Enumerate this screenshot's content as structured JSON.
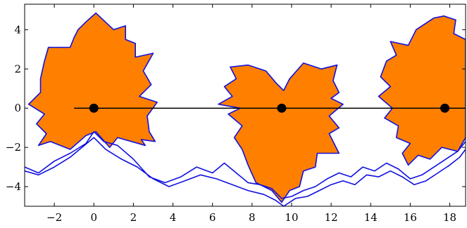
{
  "chart_data": {
    "type": "scatter",
    "title": "",
    "xlabel": "",
    "ylabel": "",
    "xlim": [
      -3.5,
      18.8
    ],
    "ylim": [
      -5.0,
      5.3
    ],
    "x_ticks": [
      -2,
      0,
      2,
      4,
      6,
      8,
      10,
      12,
      14,
      16,
      18
    ],
    "y_ticks": [
      -4,
      -2,
      0,
      2,
      4
    ],
    "x_tick_labels": [
      "−2",
      "0",
      "2",
      "4",
      "6",
      "8",
      "10",
      "12",
      "14",
      "16",
      "18"
    ],
    "y_tick_labels": [
      "−4",
      "−2",
      "0",
      "2",
      "4"
    ],
    "grid": false,
    "legend": "none",
    "horizontal_line": {
      "y": 0,
      "x_start": -1.0,
      "x_end": 18.8
    },
    "points": [
      {
        "x": 0.0,
        "y": 0.0
      },
      {
        "x": 9.5,
        "y": 0.0
      },
      {
        "x": 17.75,
        "y": 0.0
      }
    ],
    "fractal_shapes": [
      {
        "center": [
          0.0,
          0.0
        ],
        "outline": [
          [
            0.1,
            4.85
          ],
          [
            1.0,
            4.0
          ],
          [
            1.6,
            4.2
          ],
          [
            1.6,
            3.5
          ],
          [
            2.1,
            3.3
          ],
          [
            2.1,
            2.6
          ],
          [
            3.0,
            2.8
          ],
          [
            2.5,
            1.9
          ],
          [
            2.9,
            1.2
          ],
          [
            2.3,
            0.6
          ],
          [
            3.2,
            0.3
          ],
          [
            2.7,
            -0.4
          ],
          [
            2.8,
            -1.2
          ],
          [
            3.1,
            -1.7
          ],
          [
            2.4,
            -1.6
          ],
          [
            2.6,
            -1.9
          ],
          [
            1.2,
            -1.5
          ],
          [
            0.8,
            -2.0
          ],
          [
            0.1,
            -1.2
          ],
          [
            -0.4,
            -1.4
          ],
          [
            -1.2,
            -2.1
          ],
          [
            -2.2,
            -1.7
          ],
          [
            -2.8,
            -1.9
          ],
          [
            -2.4,
            -1.3
          ],
          [
            -2.9,
            -0.8
          ],
          [
            -2.5,
            -0.3
          ],
          [
            -3.3,
            0.2
          ],
          [
            -2.7,
            0.8
          ],
          [
            -2.7,
            1.5
          ],
          [
            -2.5,
            2.4
          ],
          [
            -2.3,
            3.1
          ],
          [
            -1.2,
            3.1
          ],
          [
            -1.0,
            3.6
          ],
          [
            -0.8,
            4.0
          ],
          [
            -0.4,
            4.4
          ]
        ]
      },
      {
        "center": [
          9.5,
          0.0
        ],
        "outline": [
          [
            6.9,
            2.1
          ],
          [
            7.8,
            2.2
          ],
          [
            8.7,
            1.9
          ],
          [
            9.2,
            1.3
          ],
          [
            9.6,
            0.9
          ],
          [
            9.9,
            1.5
          ],
          [
            10.6,
            2.3
          ],
          [
            11.5,
            2.0
          ],
          [
            12.3,
            2.2
          ],
          [
            12.1,
            1.4
          ],
          [
            12.4,
            0.8
          ],
          [
            12.0,
            0.5
          ],
          [
            12.6,
            0.2
          ],
          [
            11.9,
            -0.4
          ],
          [
            12.4,
            -1.0
          ],
          [
            11.9,
            -1.3
          ],
          [
            12.4,
            -2.3
          ],
          [
            11.3,
            -2.3
          ],
          [
            11.2,
            -3.0
          ],
          [
            10.6,
            -3.2
          ],
          [
            10.4,
            -4.0
          ],
          [
            9.9,
            -4.2
          ],
          [
            9.5,
            -4.8
          ],
          [
            9.0,
            -4.2
          ],
          [
            8.2,
            -3.8
          ],
          [
            7.8,
            -2.9
          ],
          [
            7.5,
            -2.1
          ],
          [
            7.1,
            -1.5
          ],
          [
            7.5,
            -0.9
          ],
          [
            6.8,
            -0.3
          ],
          [
            7.4,
            0.0
          ],
          [
            6.3,
            0.2
          ],
          [
            7.0,
            0.6
          ],
          [
            6.6,
            1.1
          ],
          [
            7.2,
            1.5
          ]
        ]
      },
      {
        "center": [
          17.75,
          0.0
        ],
        "outline": [
          [
            15.0,
            3.4
          ],
          [
            15.9,
            3.2
          ],
          [
            16.3,
            4.0
          ],
          [
            17.2,
            4.6
          ],
          [
            17.7,
            4.7
          ],
          [
            18.3,
            4.5
          ],
          [
            18.2,
            3.8
          ],
          [
            18.8,
            3.5
          ],
          [
            18.8,
            -1.5
          ],
          [
            18.4,
            -2.2
          ],
          [
            17.6,
            -2.0
          ],
          [
            17.0,
            -2.6
          ],
          [
            16.4,
            -2.4
          ],
          [
            15.9,
            -2.9
          ],
          [
            15.6,
            -2.3
          ],
          [
            16.0,
            -1.8
          ],
          [
            15.3,
            -1.5
          ],
          [
            15.4,
            -0.9
          ],
          [
            14.7,
            -0.5
          ],
          [
            15.1,
            0.0
          ],
          [
            14.4,
            0.6
          ],
          [
            15.0,
            1.1
          ],
          [
            14.5,
            1.6
          ],
          [
            14.8,
            2.4
          ],
          [
            15.3,
            2.7
          ]
        ]
      }
    ],
    "random_walk_curves": [
      {
        "points": [
          [
            -3.5,
            -3.0
          ],
          [
            -2.8,
            -3.3
          ],
          [
            -2.0,
            -2.7
          ],
          [
            -1.2,
            -2.3
          ],
          [
            -0.4,
            -1.8
          ],
          [
            0.0,
            -1.2
          ],
          [
            0.5,
            -1.7
          ],
          [
            1.2,
            -1.9
          ],
          [
            2.0,
            -2.6
          ],
          [
            2.8,
            -3.5
          ],
          [
            3.6,
            -3.8
          ],
          [
            4.4,
            -3.5
          ],
          [
            5.2,
            -3.0
          ],
          [
            6.0,
            -3.3
          ],
          [
            6.6,
            -2.8
          ],
          [
            7.2,
            -3.3
          ],
          [
            7.8,
            -3.8
          ],
          [
            8.4,
            -3.9
          ],
          [
            9.0,
            -4.1
          ],
          [
            9.5,
            -4.6
          ],
          [
            10.0,
            -4.5
          ],
          [
            10.6,
            -4.2
          ],
          [
            11.2,
            -4.0
          ],
          [
            11.8,
            -3.6
          ],
          [
            12.4,
            -3.3
          ],
          [
            13.0,
            -3.5
          ],
          [
            13.6,
            -3.0
          ],
          [
            14.2,
            -3.2
          ],
          [
            14.8,
            -2.8
          ],
          [
            15.4,
            -3.1
          ],
          [
            16.0,
            -3.6
          ],
          [
            16.6,
            -3.4
          ],
          [
            17.2,
            -3.0
          ],
          [
            17.8,
            -2.6
          ],
          [
            18.4,
            -2.2
          ],
          [
            18.8,
            -1.7
          ]
        ]
      },
      {
        "points": [
          [
            -3.5,
            -3.2
          ],
          [
            -2.8,
            -3.4
          ],
          [
            -2.0,
            -3.0
          ],
          [
            -1.2,
            -2.5
          ],
          [
            -0.6,
            -2.0
          ],
          [
            0.0,
            -1.5
          ],
          [
            0.6,
            -2.1
          ],
          [
            1.4,
            -2.6
          ],
          [
            2.2,
            -3.0
          ],
          [
            3.0,
            -3.6
          ],
          [
            3.8,
            -4.0
          ],
          [
            4.6,
            -3.7
          ],
          [
            5.4,
            -3.4
          ],
          [
            6.2,
            -3.6
          ],
          [
            7.0,
            -3.9
          ],
          [
            7.8,
            -4.2
          ],
          [
            8.6,
            -4.4
          ],
          [
            9.2,
            -4.7
          ],
          [
            9.6,
            -5.0
          ],
          [
            10.2,
            -4.6
          ],
          [
            10.8,
            -4.5
          ],
          [
            11.4,
            -4.2
          ],
          [
            12.0,
            -3.9
          ],
          [
            12.6,
            -3.7
          ],
          [
            13.2,
            -3.9
          ],
          [
            13.8,
            -3.4
          ],
          [
            14.4,
            -3.5
          ],
          [
            15.0,
            -3.2
          ],
          [
            15.6,
            -3.5
          ],
          [
            16.2,
            -3.9
          ],
          [
            16.8,
            -3.7
          ],
          [
            17.4,
            -3.3
          ],
          [
            18.0,
            -2.9
          ],
          [
            18.5,
            -2.5
          ],
          [
            18.8,
            -2.1
          ]
        ]
      }
    ],
    "colors": {
      "fill": "#ff7f00",
      "outline": "#1010e0",
      "line": "#000000",
      "point": "#000000"
    }
  }
}
